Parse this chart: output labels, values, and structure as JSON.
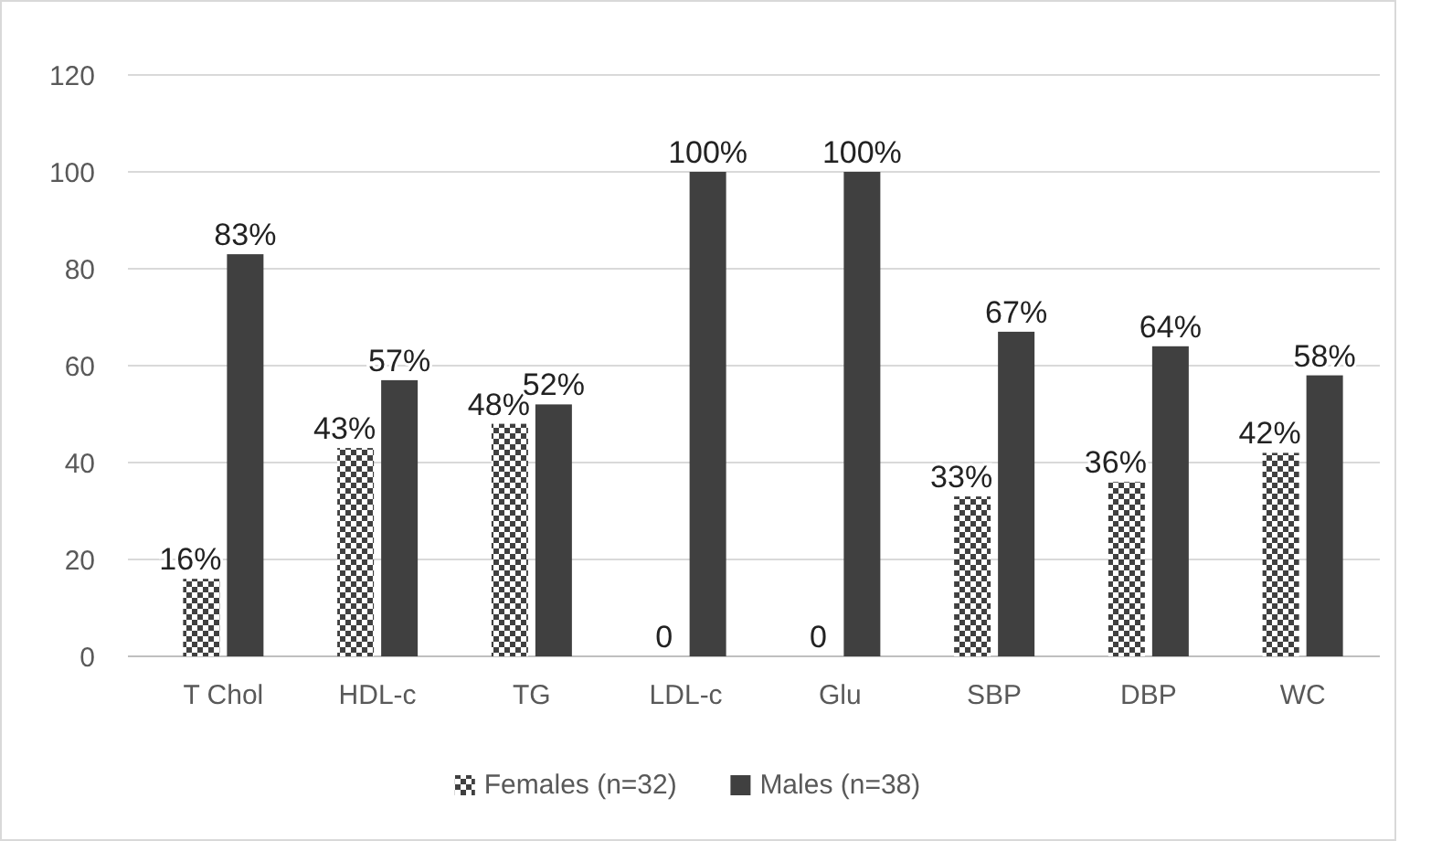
{
  "chart_data": {
    "type": "bar",
    "categories": [
      "T Chol",
      "HDL-c",
      "TG",
      "LDL-c",
      "Glu",
      "SBP",
      "DBP",
      "WC"
    ],
    "series": [
      {
        "name": "Females (n=32)",
        "color": "#404040",
        "values": [
          16,
          43,
          48,
          0,
          0,
          33,
          36,
          42
        ],
        "value_labels": [
          "16%",
          "43%",
          "48%",
          "0",
          "0",
          "33%",
          "36%",
          "42%"
        ]
      },
      {
        "name": "Males (n=38)",
        "color": "#404040",
        "values": [
          83,
          57,
          52,
          100,
          100,
          67,
          64,
          58
        ],
        "value_labels": [
          "83%",
          "57%",
          "52%",
          "100%",
          "100%",
          "67%",
          "64%",
          "58%"
        ]
      }
    ],
    "ylim": [
      0,
      120
    ],
    "yticks": [
      0,
      20,
      40,
      60,
      80,
      100,
      120
    ],
    "grid": "y",
    "legend": "bottom"
  }
}
